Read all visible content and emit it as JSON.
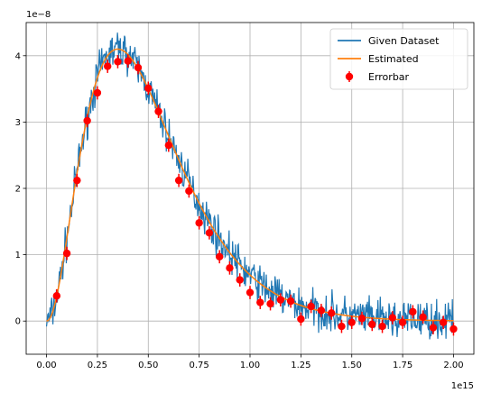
{
  "chart_data": {
    "type": "line",
    "title": "",
    "xlabel": "",
    "ylabel": "",
    "x_offset_text": "1e15",
    "y_offset_text": "1e−8",
    "xlim": [
      -0.1,
      2.1
    ],
    "ylim": [
      -0.5,
      4.5
    ],
    "xticks": [
      "0.00",
      "0.25",
      "0.50",
      "0.75",
      "1.00",
      "1.25",
      "1.50",
      "1.75",
      "2.00"
    ],
    "yticks": [
      "0",
      "1",
      "2",
      "3",
      "4"
    ],
    "grid": true,
    "legend_position": "top-right",
    "series": [
      {
        "name": "Given Dataset",
        "color": "#1f77b4",
        "style": "noisy-line"
      },
      {
        "name": "Estimated",
        "color": "#ff7f0e",
        "style": "line"
      },
      {
        "name": "Errorbar",
        "color": "#ff0000",
        "style": "points-with-errorbars",
        "x": [
          0.05,
          0.1,
          0.15,
          0.2,
          0.25,
          0.3,
          0.35,
          0.4,
          0.45,
          0.5,
          0.55,
          0.6,
          0.65,
          0.7,
          0.75,
          0.8,
          0.85,
          0.9,
          0.95,
          1.0,
          1.05,
          1.1,
          1.15,
          1.2,
          1.25,
          1.3,
          1.35,
          1.4,
          1.45,
          1.5,
          1.55,
          1.6,
          1.65,
          1.7,
          1.75,
          1.8,
          1.85,
          1.9,
          1.95,
          2.0
        ],
        "y": [
          0.38,
          1.02,
          2.12,
          3.02,
          3.44,
          3.84,
          3.91,
          3.92,
          3.82,
          3.51,
          3.16,
          2.65,
          2.12,
          1.96,
          1.48,
          1.33,
          0.97,
          0.8,
          0.62,
          0.43,
          0.28,
          0.26,
          0.32,
          0.3,
          0.03,
          0.22,
          0.16,
          0.12,
          -0.08,
          -0.02,
          0.04,
          -0.05,
          -0.08,
          0.05,
          -0.02,
          0.14,
          0.06,
          -0.1,
          -0.02,
          -0.12
        ],
        "yerr": [
          0.1,
          0.1,
          0.1,
          0.1,
          0.1,
          0.1,
          0.1,
          0.1,
          0.1,
          0.1,
          0.1,
          0.1,
          0.1,
          0.1,
          0.1,
          0.1,
          0.1,
          0.1,
          0.1,
          0.1,
          0.1,
          0.1,
          0.1,
          0.1,
          0.1,
          0.1,
          0.1,
          0.1,
          0.1,
          0.1,
          0.1,
          0.1,
          0.1,
          0.1,
          0.1,
          0.1,
          0.1,
          0.1,
          0.1,
          0.1
        ]
      }
    ]
  }
}
